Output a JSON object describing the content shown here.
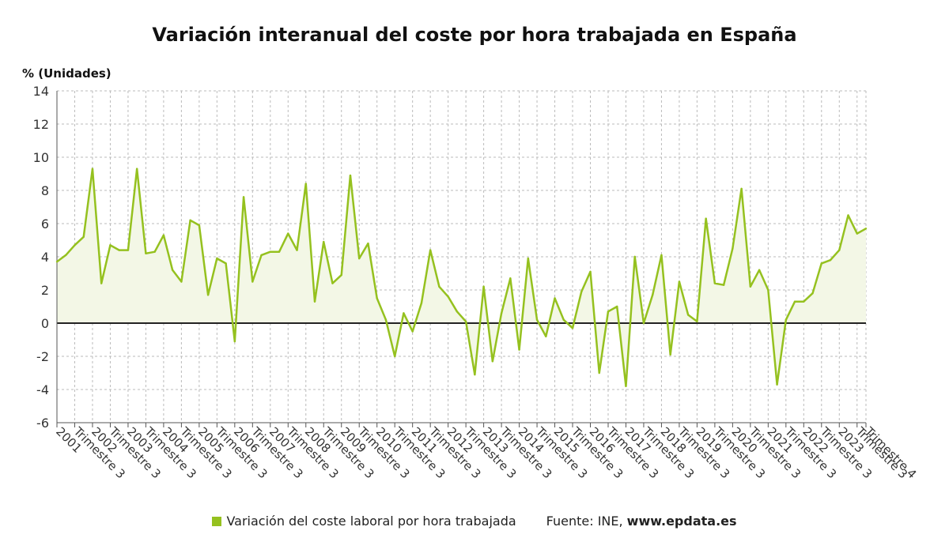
{
  "title": "Variación interanual del coste por hora trabajada en España",
  "y_unit": "% (Unidades)",
  "legend": {
    "series_label": "Variación del coste laboral por hora trabajada",
    "source_prefix": "Fuente: INE, ",
    "source_site": "www.epdata.es"
  },
  "colors": {
    "series": "#95c11f",
    "fill": "#f3f7e6",
    "zero_line": "#222222",
    "grid": "#bbbbbb"
  },
  "chart_data": {
    "type": "line",
    "ylim": [
      -6,
      14
    ],
    "yticks": [
      -6,
      -4,
      -2,
      0,
      2,
      4,
      6,
      8,
      10,
      12,
      14
    ],
    "grid": true,
    "legend_position": "bottom",
    "x_tick_labels": [
      "2001",
      "Trimestre 3",
      "2002",
      "Trimestre 3",
      "2003",
      "Trimestre 3",
      "2004",
      "Trimestre 3",
      "2005",
      "Trimestre 3",
      "2006",
      "Trimestre 3",
      "2007",
      "Trimestre 3",
      "2008",
      "Trimestre 3",
      "2009",
      "Trimestre 3",
      "2010",
      "Trimestre 3",
      "2011",
      "Trimestre 3",
      "2012",
      "Trimestre 3",
      "2013",
      "Trimestre 3",
      "2014",
      "Trimestre 3",
      "2015",
      "Trimestre 3",
      "2016",
      "Trimestre 3",
      "2017",
      "Trimestre 3",
      "2018",
      "Trimestre 3",
      "2019",
      "Trimestre 3",
      "2020",
      "Trimestre 3",
      "2021",
      "Trimestre 3",
      "2022",
      "Trimestre 3",
      "2023",
      "Trimestre 3",
      "Trimestre 4"
    ],
    "series": [
      {
        "name": "Variación del coste laboral por hora trabajada",
        "values": [
          3.7,
          4.1,
          4.7,
          5.2,
          9.3,
          2.4,
          4.7,
          4.4,
          4.4,
          9.3,
          4.2,
          4.3,
          5.3,
          3.2,
          2.5,
          6.2,
          5.9,
          1.7,
          3.9,
          3.6,
          -1.1,
          7.6,
          2.5,
          4.1,
          4.3,
          4.3,
          5.4,
          4.4,
          8.4,
          1.3,
          4.9,
          2.4,
          2.9,
          8.9,
          3.9,
          4.8,
          1.5,
          0.2,
          -2.0,
          0.6,
          -0.5,
          1.2,
          4.4,
          2.2,
          1.6,
          0.7,
          0.1,
          -3.1,
          2.2,
          -2.3,
          0.6,
          2.7,
          -1.6,
          3.9,
          0.2,
          -0.8,
          1.5,
          0.2,
          -0.3,
          1.9,
          3.1,
          -3.0,
          0.7,
          1.0,
          -3.8,
          4.0,
          0.0,
          1.7,
          4.1,
          -1.9,
          2.5,
          0.5,
          0.1,
          6.3,
          2.4,
          2.3,
          4.5,
          8.1,
          2.2,
          3.2,
          2.0,
          -3.7,
          0.2,
          1.3,
          1.3,
          1.8,
          3.6,
          3.8,
          4.4,
          6.5,
          5.4,
          5.7
        ]
      }
    ]
  }
}
